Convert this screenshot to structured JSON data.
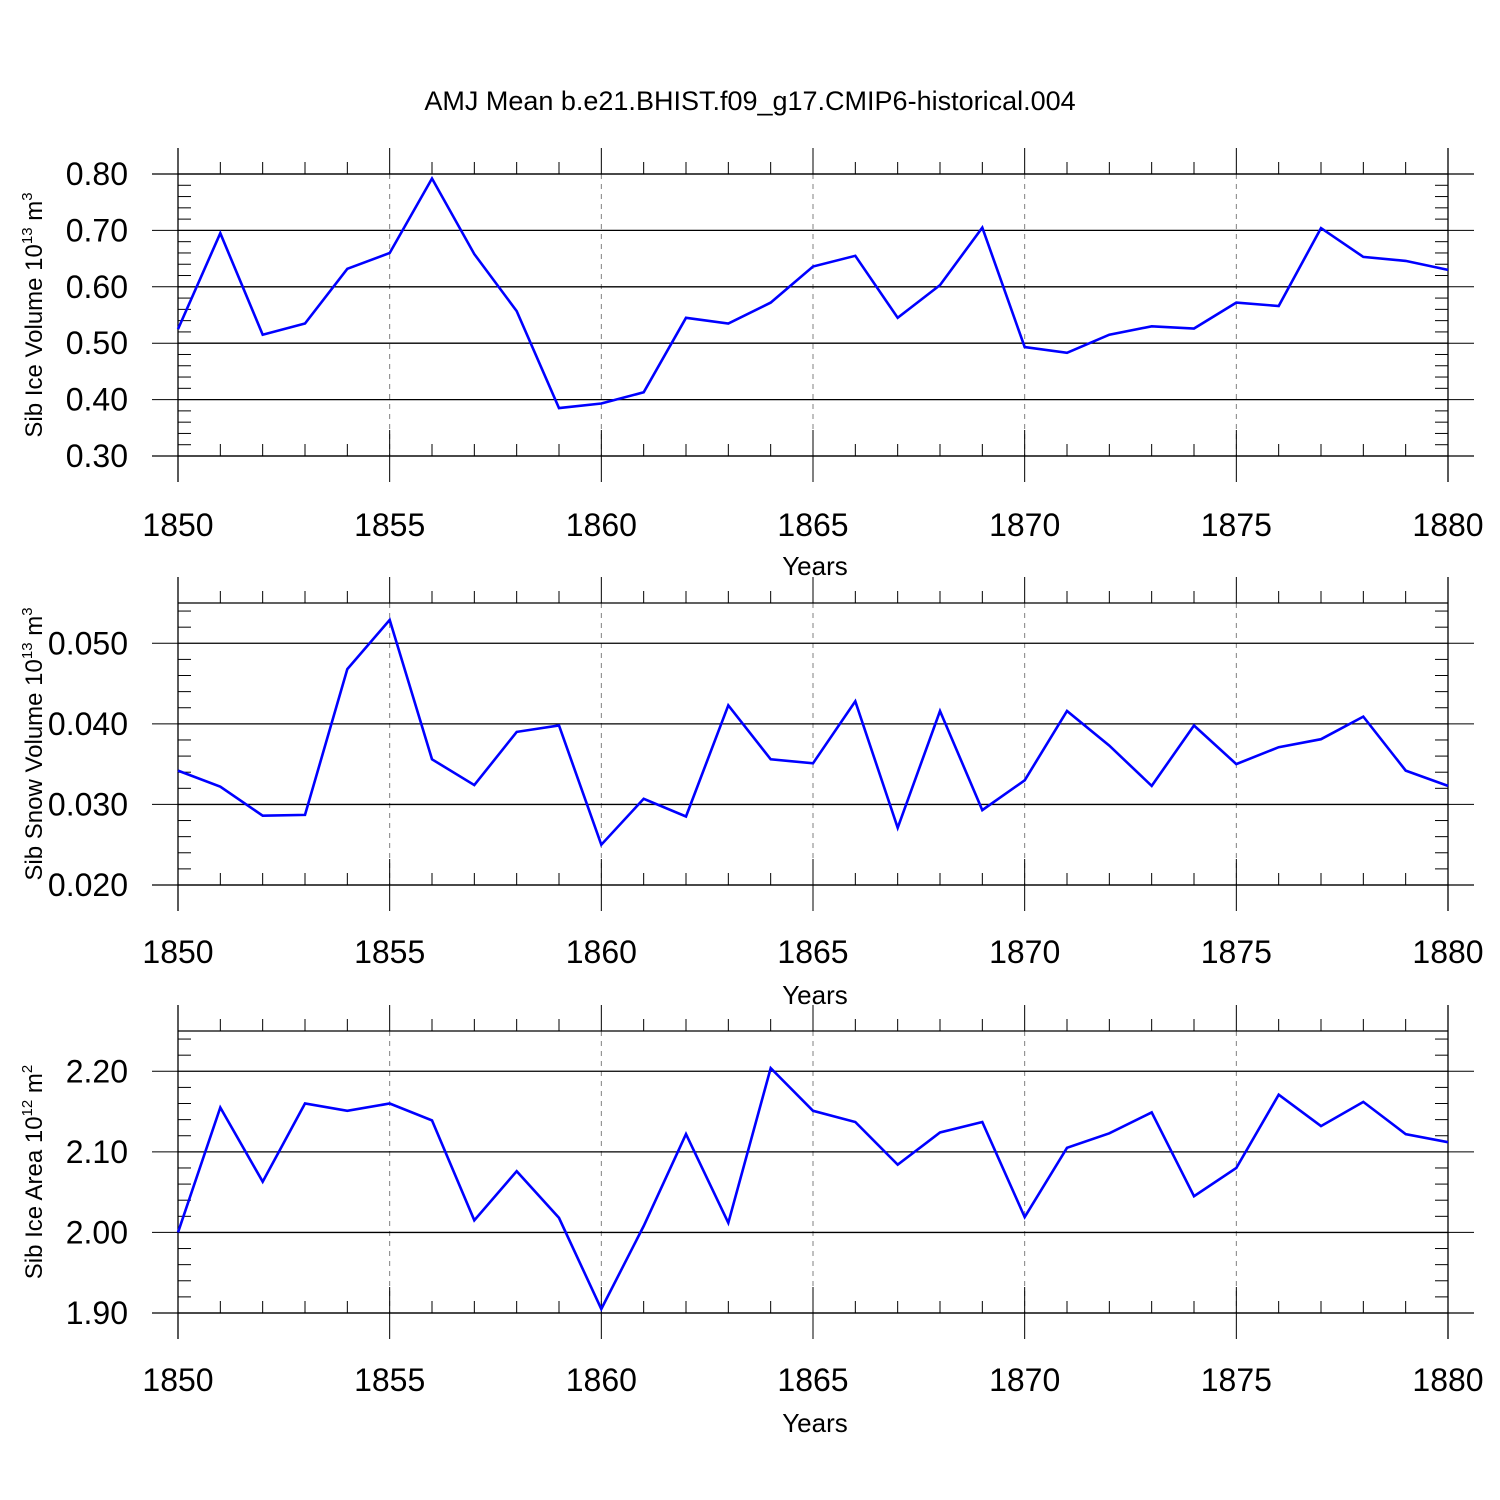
{
  "title": "AMJ Mean b.e21.BHIST.f09_g17.CMIP6-historical.004",
  "colors": {
    "line": "#0000ff",
    "axis": "#000000",
    "grid": "#808080"
  },
  "chart_data": [
    {
      "type": "line",
      "ylabel": {
        "text": "Sib Ice Volume 10",
        "exp": "13",
        "unit": " m",
        "unit_exp": "3"
      },
      "xlabel": "Years",
      "xlim": [
        1850,
        1880
      ],
      "ylim": [
        0.3,
        0.8
      ],
      "x_ticks": [
        1850,
        1855,
        1860,
        1865,
        1870,
        1875,
        1880
      ],
      "y_ticks": [
        "0.30",
        "0.40",
        "0.50",
        "0.60",
        "0.70",
        "0.80"
      ],
      "grid": "vertical dashed at major x ticks",
      "x": [
        1850,
        1851,
        1852,
        1853,
        1854,
        1855,
        1856,
        1857,
        1858,
        1859,
        1860,
        1861,
        1862,
        1863,
        1864,
        1865,
        1866,
        1867,
        1868,
        1869,
        1870,
        1871,
        1872,
        1873,
        1874,
        1875,
        1876,
        1877,
        1878,
        1879,
        1880
      ],
      "values": [
        0.525,
        0.695,
        0.515,
        0.535,
        0.632,
        0.66,
        0.792,
        0.658,
        0.557,
        0.385,
        0.393,
        0.413,
        0.545,
        0.535,
        0.572,
        0.636,
        0.655,
        0.545,
        0.603,
        0.705,
        0.493,
        0.483,
        0.515,
        0.53,
        0.526,
        0.572,
        0.566,
        0.704,
        0.653,
        0.646,
        0.63
      ]
    },
    {
      "type": "line",
      "ylabel": {
        "text": "Sib Snow Volume 10",
        "exp": "13",
        "unit": " m",
        "unit_exp": "3"
      },
      "xlabel": "Years",
      "xlim": [
        1850,
        1880
      ],
      "ylim": [
        0.02,
        0.055
      ],
      "x_ticks": [
        1850,
        1855,
        1860,
        1865,
        1870,
        1875,
        1880
      ],
      "y_ticks": [
        "0.020",
        "0.030",
        "0.040",
        "0.050"
      ],
      "grid": "vertical dashed at major x ticks",
      "x": [
        1850,
        1851,
        1852,
        1853,
        1854,
        1855,
        1856,
        1857,
        1858,
        1859,
        1860,
        1861,
        1862,
        1863,
        1864,
        1865,
        1866,
        1867,
        1868,
        1869,
        1870,
        1871,
        1872,
        1873,
        1874,
        1875,
        1876,
        1877,
        1878,
        1879,
        1880
      ],
      "values": [
        0.0342,
        0.0322,
        0.0286,
        0.0287,
        0.0468,
        0.0529,
        0.0356,
        0.0324,
        0.039,
        0.0398,
        0.025,
        0.0307,
        0.0285,
        0.0423,
        0.0356,
        0.0351,
        0.0428,
        0.0271,
        0.0416,
        0.0293,
        0.033,
        0.0416,
        0.0373,
        0.0323,
        0.0398,
        0.035,
        0.0371,
        0.0381,
        0.0409,
        0.0342,
        0.0323
      ]
    },
    {
      "type": "line",
      "ylabel": {
        "text": "Sib Ice Area 10",
        "exp": "12",
        "unit": " m",
        "unit_exp": "2"
      },
      "xlabel": "Years",
      "xlim": [
        1850,
        1880
      ],
      "ylim": [
        1.9,
        2.25
      ],
      "x_ticks": [
        1850,
        1855,
        1860,
        1865,
        1870,
        1875,
        1880
      ],
      "y_ticks": [
        "1.90",
        "2.00",
        "2.10",
        "2.20"
      ],
      "grid": "vertical dashed at major x ticks",
      "x": [
        1850,
        1851,
        1852,
        1853,
        1854,
        1855,
        1856,
        1857,
        1858,
        1859,
        1860,
        1861,
        1862,
        1863,
        1864,
        1865,
        1866,
        1867,
        1868,
        1869,
        1870,
        1871,
        1872,
        1873,
        1874,
        1875,
        1876,
        1877,
        1878,
        1879,
        1880
      ],
      "values": [
        2.0,
        2.155,
        2.063,
        2.16,
        2.151,
        2.16,
        2.139,
        2.015,
        2.076,
        2.018,
        1.905,
        2.008,
        2.122,
        2.012,
        2.204,
        2.151,
        2.137,
        2.084,
        2.124,
        2.137,
        2.019,
        2.105,
        2.123,
        2.149,
        2.045,
        2.08,
        2.171,
        2.132,
        2.162,
        2.122,
        2.112
      ]
    }
  ]
}
